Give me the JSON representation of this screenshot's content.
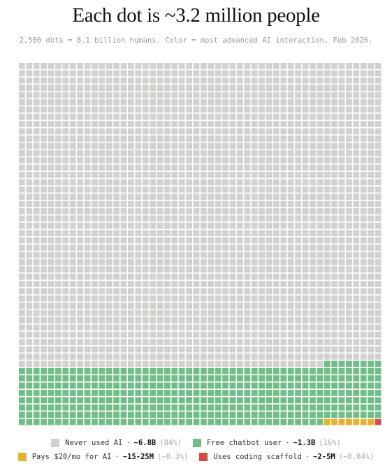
{
  "title": "Each dot is ~3.2 million people",
  "subtitle": "2,500 dots = 8.1 billion humans. Color = most advanced AI interaction, Feb 2026.",
  "legend": [
    {
      "label": "Never used AI",
      "count": "~6.8B",
      "pct": "(84%)",
      "color": "#d3d1cd"
    },
    {
      "label": "Free chatbot user",
      "count": "~1.3B",
      "pct": "(16%)",
      "color": "#71bd87"
    },
    {
      "label": "Pays $20/mo for AI",
      "count": "~15-25M",
      "pct": "(~0.3%)",
      "color": "#e3b32e"
    },
    {
      "label": "Uses coding scaffold",
      "count": "~2-5M",
      "pct": "(~0.04%)",
      "color": "#d24b45"
    }
  ],
  "chart_data": {
    "type": "waffle",
    "total_dots": 2500,
    "grid": {
      "rows": 50,
      "cols": 50
    },
    "series": [
      {
        "name": "Never used AI",
        "dots": 2092,
        "color": "#d3d1cd"
      },
      {
        "name": "Free chatbot user",
        "dots": 400,
        "color": "#71bd87"
      },
      {
        "name": "Pays $20/mo for AI",
        "dots": 7,
        "color": "#e3b32e"
      },
      {
        "name": "Uses coding scaffold",
        "dots": 1,
        "color": "#d24b45"
      }
    ]
  }
}
